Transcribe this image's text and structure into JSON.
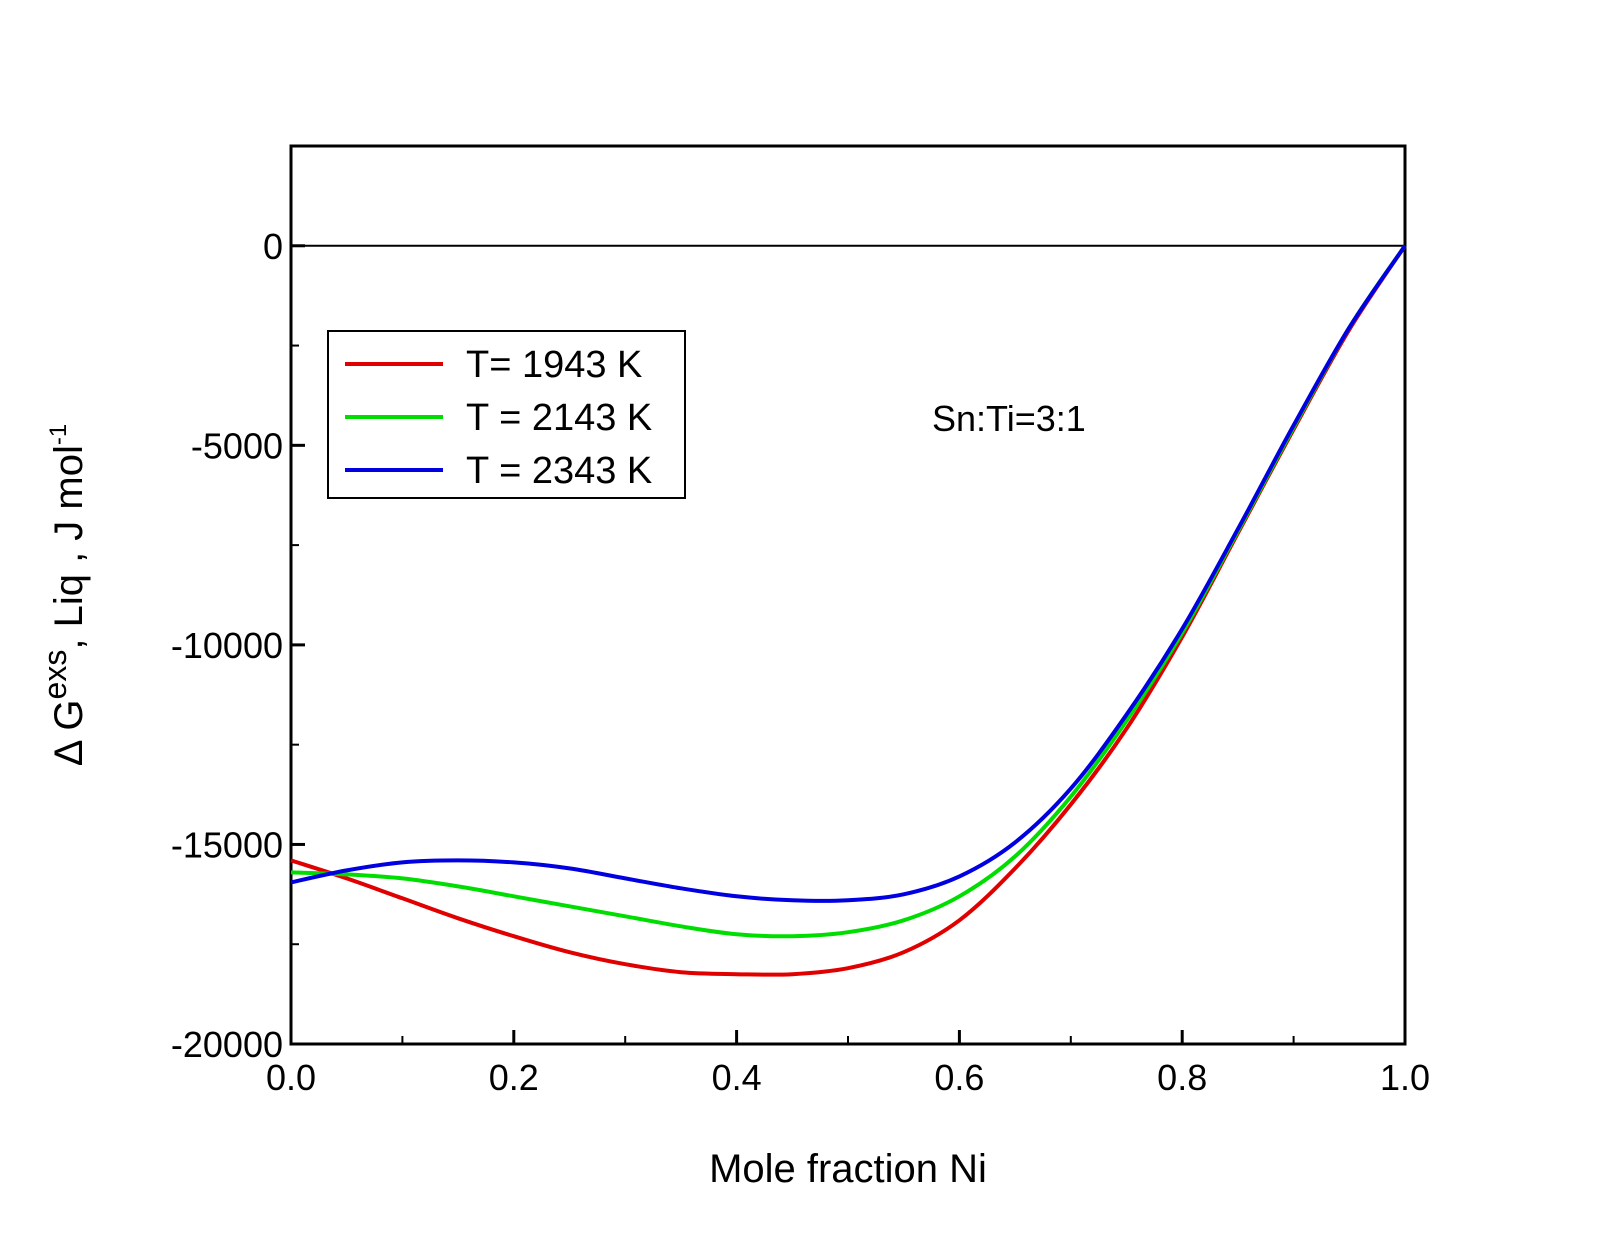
{
  "chart_data": {
    "type": "line",
    "title": "",
    "xlabel": "Mole fraction Ni",
    "ylabel": {
      "prefix": "Δ G",
      "sup1": "exs",
      "mid": ", Liq",
      "mid2": " , J mol",
      "sup2": "-1"
    },
    "xlim": [
      0.0,
      1.0
    ],
    "ylim": [
      -20000,
      2500
    ],
    "x_ticks": [
      0.0,
      0.2,
      0.4,
      0.6,
      0.8,
      1.0
    ],
    "x_tick_labels": [
      "0.0",
      "0.2",
      "0.4",
      "0.6",
      "0.8",
      "1.0"
    ],
    "y_ticks": [
      0,
      -5000,
      -10000,
      -15000,
      -20000
    ],
    "y_tick_labels": [
      "0",
      "-5000",
      "-10000",
      "-15000",
      "-20000"
    ],
    "reference_line_y": 0,
    "annotation": "Sn:Ti=3:1",
    "legend_position": "upper-left",
    "x": [
      0.0,
      0.05,
      0.1,
      0.15,
      0.2,
      0.25,
      0.3,
      0.35,
      0.4,
      0.45,
      0.5,
      0.55,
      0.6,
      0.65,
      0.7,
      0.75,
      0.8,
      0.85,
      0.9,
      0.95,
      1.0
    ],
    "series": [
      {
        "name": "T= 1943 K",
        "color": "#e00000",
        "values": [
          -15400,
          -15850,
          -16350,
          -16850,
          -17300,
          -17700,
          -18000,
          -18200,
          -18250,
          -18250,
          -18100,
          -17700,
          -16900,
          -15600,
          -14000,
          -12100,
          -9800,
          -7200,
          -4600,
          -2100,
          0
        ]
      },
      {
        "name": "T = 2143 K",
        "color": "#00dd00",
        "values": [
          -15700,
          -15750,
          -15850,
          -16050,
          -16300,
          -16550,
          -16800,
          -17050,
          -17250,
          -17300,
          -17200,
          -16900,
          -16300,
          -15300,
          -13800,
          -11900,
          -9700,
          -7150,
          -4550,
          -2050,
          0
        ]
      },
      {
        "name": "T = 2343 K",
        "color": "#0000e0",
        "values": [
          -15950,
          -15650,
          -15450,
          -15400,
          -15450,
          -15600,
          -15850,
          -16100,
          -16300,
          -16400,
          -16400,
          -16250,
          -15800,
          -14950,
          -13600,
          -11750,
          -9600,
          -7100,
          -4500,
          -2050,
          0
        ]
      }
    ]
  }
}
